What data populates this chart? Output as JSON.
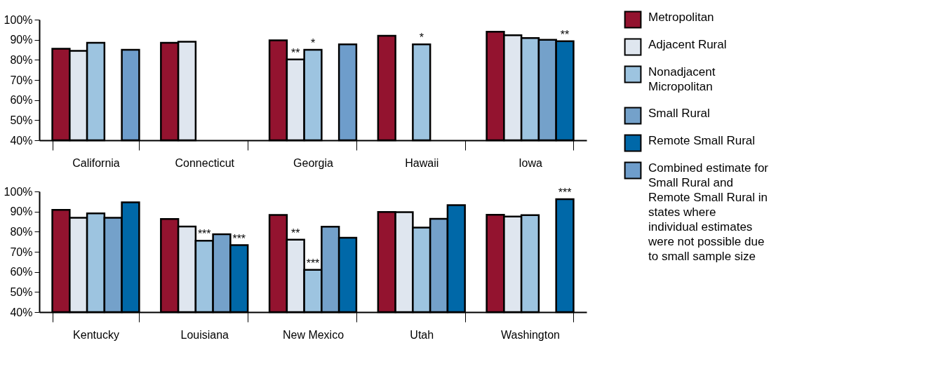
{
  "chart_data": [
    {
      "type": "bar",
      "categories": [
        "California",
        "Connecticut",
        "Georgia",
        "Hawaii",
        "Iowa"
      ],
      "ylim": [
        40,
        100
      ],
      "yticks": [
        {
          "value": 40,
          "label": "40%"
        },
        {
          "value": 50,
          "label": "50%"
        },
        {
          "value": 60,
          "label": "60%"
        },
        {
          "value": 70,
          "label": "70%"
        },
        {
          "value": 80,
          "label": "80%"
        },
        {
          "value": 90,
          "label": "90%"
        },
        {
          "value": 100,
          "label": "100%"
        }
      ],
      "grid": false,
      "legend": "right",
      "series": [
        {
          "name": "Metropolitan",
          "color": "#93132f",
          "values": [
            85.5,
            88.5,
            89.7,
            92,
            94
          ]
        },
        {
          "name": "Adjacent Rural",
          "color": "#dfe6ef",
          "values": [
            84.5,
            89,
            80.2,
            null,
            92.2
          ],
          "value_labels": [
            null,
            null,
            "**",
            null,
            null
          ]
        },
        {
          "name": "Nonadjacent Micropolitan",
          "color": "#9dc4e0",
          "values": [
            88.5,
            null,
            85,
            87.7,
            90.8
          ],
          "value_labels": [
            null,
            null,
            "*",
            "*",
            null
          ]
        },
        {
          "name": "Small Rural",
          "color": "#74a1ca",
          "values": [
            null,
            null,
            null,
            null,
            90
          ]
        },
        {
          "name": "Remote Small Rural",
          "color": "#0068a8",
          "values": [
            null,
            null,
            null,
            null,
            89.3
          ],
          "value_labels": [
            null,
            null,
            null,
            null,
            "**"
          ]
        },
        {
          "name": "Combined estimate for Small Rural and Remote Small Rural in states where individual estimates were not possible due to small sample size",
          "color": "#6e9dcb",
          "values": [
            85,
            null,
            87.7,
            null,
            null
          ]
        }
      ]
    },
    {
      "type": "bar",
      "categories": [
        "Kentucky",
        "Louisiana",
        "New Mexico",
        "Utah",
        "Washington"
      ],
      "ylim": [
        40,
        100
      ],
      "yticks": [
        {
          "value": 40,
          "label": "40%"
        },
        {
          "value": 50,
          "label": "50%"
        },
        {
          "value": 60,
          "label": "60%"
        },
        {
          "value": 70,
          "label": "70%"
        },
        {
          "value": 80,
          "label": "80%"
        },
        {
          "value": 90,
          "label": "90%"
        },
        {
          "value": 100,
          "label": "100%"
        }
      ],
      "grid": false,
      "legend": "right",
      "series": [
        {
          "color": "#93132f",
          "values": [
            90.8,
            86.3,
            88.3,
            89.8,
            88.4
          ]
        },
        {
          "color": "#dfe6ef",
          "values": [
            86.9,
            82.6,
            76,
            89.7,
            87.5
          ],
          "value_labels": [
            null,
            null,
            "**",
            null,
            null
          ]
        },
        {
          "color": "#9dc4e0",
          "values": [
            89.1,
            75.5,
            61,
            82,
            88.2
          ],
          "value_labels": [
            null,
            "***",
            "***",
            null,
            null
          ]
        },
        {
          "color": "#74a1ca",
          "values": [
            86.9,
            78.7,
            82.5,
            86.4,
            null
          ]
        },
        {
          "color": "#0068a8",
          "values": [
            94.6,
            73.3,
            77,
            93.2,
            96.2
          ],
          "value_labels": [
            null,
            "***",
            null,
            null,
            "***"
          ]
        }
      ]
    }
  ]
}
